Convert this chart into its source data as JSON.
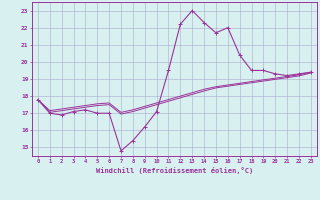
{
  "x": [
    0,
    1,
    2,
    3,
    4,
    5,
    6,
    7,
    8,
    9,
    10,
    11,
    12,
    13,
    14,
    15,
    16,
    17,
    18,
    19,
    20,
    21,
    22,
    23
  ],
  "windchill": [
    17.8,
    17.0,
    16.9,
    17.1,
    17.2,
    17.0,
    17.0,
    14.8,
    15.4,
    16.2,
    17.1,
    19.5,
    22.2,
    23.0,
    22.3,
    21.7,
    22.0,
    20.4,
    19.5,
    19.5,
    19.3,
    19.2,
    19.3,
    19.4
  ],
  "line2": [
    17.8,
    17.15,
    17.25,
    17.35,
    17.45,
    17.55,
    17.6,
    17.05,
    17.2,
    17.4,
    17.6,
    17.8,
    18.0,
    18.2,
    18.4,
    18.55,
    18.65,
    18.75,
    18.85,
    18.95,
    19.05,
    19.15,
    19.25,
    19.4
  ],
  "line3": [
    17.8,
    17.05,
    17.15,
    17.25,
    17.35,
    17.45,
    17.5,
    16.95,
    17.1,
    17.3,
    17.5,
    17.7,
    17.9,
    18.1,
    18.3,
    18.48,
    18.58,
    18.68,
    18.78,
    18.88,
    18.98,
    19.08,
    19.18,
    19.35
  ],
  "line_color": "#993399",
  "bg_color": "#d8f0f0",
  "grid_color": "#aaaacc",
  "xlabel": "Windchill (Refroidissement éolien,°C)",
  "ylim": [
    14.5,
    23.5
  ],
  "xlim": [
    -0.5,
    23.5
  ],
  "yticks": [
    15,
    16,
    17,
    18,
    19,
    20,
    21,
    22,
    23
  ],
  "xticks": [
    0,
    1,
    2,
    3,
    4,
    5,
    6,
    7,
    8,
    9,
    10,
    11,
    12,
    13,
    14,
    15,
    16,
    17,
    18,
    19,
    20,
    21,
    22,
    23
  ]
}
